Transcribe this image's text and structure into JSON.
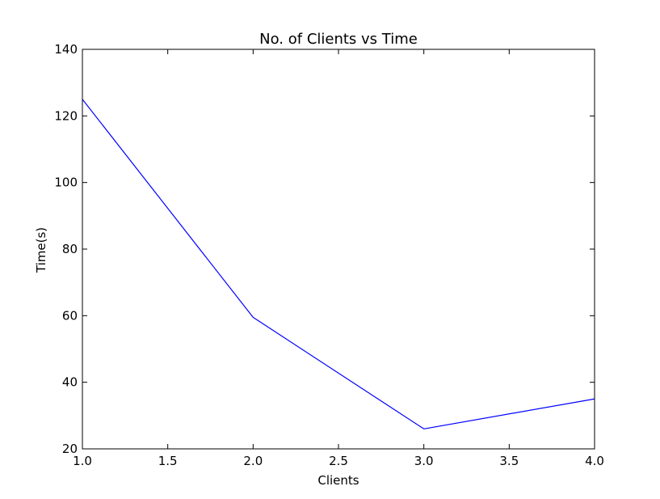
{
  "chart_data": {
    "type": "line",
    "title": "No. of Clients vs Time",
    "xlabel": "Clients",
    "ylabel": "Time(s)",
    "xlim": [
      1.0,
      4.0
    ],
    "ylim": [
      20,
      140
    ],
    "x_ticks": [
      "1.0",
      "1.5",
      "2.0",
      "2.5",
      "3.0",
      "3.5",
      "4.0"
    ],
    "y_ticks": [
      "20",
      "40",
      "60",
      "80",
      "100",
      "120",
      "140"
    ],
    "grid": false,
    "series": [
      {
        "color": "#0000ff",
        "x": [
          1.0,
          2.0,
          3.0,
          4.0
        ],
        "y": [
          125,
          59.5,
          26,
          35
        ]
      }
    ]
  }
}
